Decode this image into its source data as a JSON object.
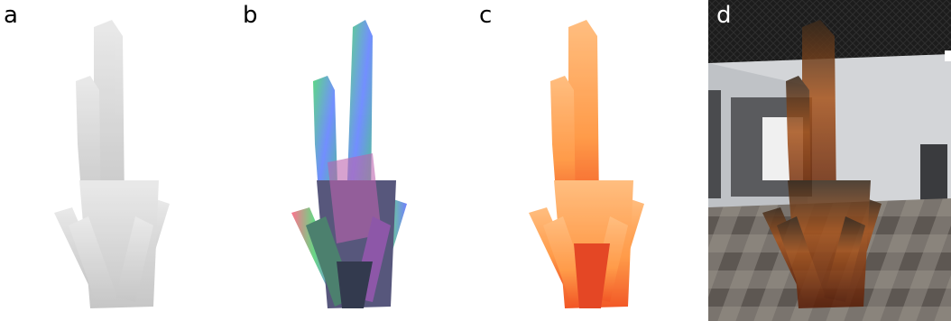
{
  "panels": [
    {
      "label": "a",
      "style": "grey"
    },
    {
      "label": "b",
      "style": "rgb-normals"
    },
    {
      "label": "c",
      "style": "orange"
    },
    {
      "label": "d",
      "style": "composited-in-room"
    }
  ],
  "colors": {
    "grey_light": "#e2e2e2",
    "grey_dark": "#b9b9b9",
    "orange_light": "#ffb36a",
    "orange_dark": "#f03a00",
    "room_floor": "#6f6a66",
    "room_wall": "#d3d5d8",
    "room_ceiling": "#1c1c1c",
    "amber": "#a8541c"
  }
}
